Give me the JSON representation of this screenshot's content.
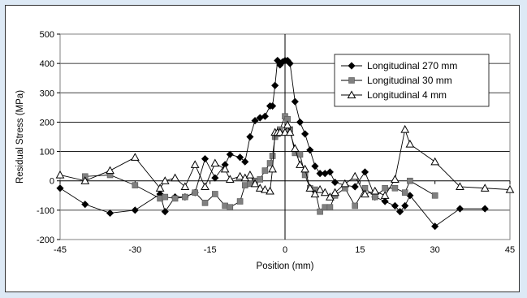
{
  "chart_data": {
    "type": "line",
    "xlabel": "Position (mm)",
    "ylabel": "Residual Stress (MPa)",
    "xlim": [
      -45,
      45
    ],
    "ylim": [
      -200,
      500
    ],
    "xticks": [
      -45,
      -30,
      -15,
      0,
      15,
      30,
      45
    ],
    "yticks": [
      -200,
      -100,
      0,
      100,
      200,
      300,
      400,
      500
    ],
    "grid": "horizontal",
    "legend_position": "top-right",
    "series": [
      {
        "name": "Longitudinal 270 mm",
        "marker": "diamond",
        "color": "#000000",
        "x": [
          -45,
          -40,
          -35,
          -30,
          -25,
          -24,
          -22,
          -20,
          -18,
          -16,
          -14,
          -12,
          -11,
          -9,
          -8,
          -7,
          -6,
          -5,
          -4,
          -3,
          -2.5,
          -2,
          -1.5,
          -1,
          -0.5,
          0,
          0.5,
          1,
          2,
          3,
          4,
          5,
          6,
          7,
          8,
          9,
          10,
          12,
          14,
          16,
          18,
          20,
          22,
          23,
          24,
          25,
          30,
          35,
          40
        ],
        "y": [
          -25,
          -80,
          -110,
          -100,
          -45,
          -105,
          -55,
          -55,
          -40,
          75,
          10,
          55,
          90,
          80,
          65,
          150,
          205,
          215,
          220,
          255,
          255,
          325,
          410,
          395,
          405,
          410,
          410,
          400,
          270,
          200,
          160,
          105,
          50,
          25,
          25,
          30,
          -5,
          -15,
          -20,
          30,
          -55,
          -70,
          -85,
          -105,
          -85,
          -50,
          -155,
          -95,
          -95
        ]
      },
      {
        "name": "Longitudinal 30 mm",
        "marker": "square",
        "color": "#808080",
        "x": [
          -40,
          -35,
          -30,
          -25,
          -24,
          -22,
          -20,
          -18,
          -16,
          -14,
          -12,
          -11,
          -9,
          -8,
          -7,
          -6,
          -5,
          -4,
          -3,
          -2.5,
          -2,
          -1.5,
          -1,
          0,
          0.5,
          1,
          2,
          3,
          4,
          5,
          6,
          7,
          8,
          9,
          10,
          12,
          14,
          16,
          18,
          20,
          22,
          24,
          25,
          30
        ],
        "y": [
          15,
          20,
          -15,
          -60,
          -55,
          -60,
          -55,
          -40,
          -75,
          -45,
          -85,
          -90,
          -70,
          -15,
          -10,
          0,
          5,
          35,
          60,
          85,
          150,
          160,
          175,
          220,
          210,
          175,
          95,
          90,
          20,
          -25,
          -30,
          -105,
          -90,
          -90,
          -50,
          -25,
          -85,
          -25,
          -55,
          -25,
          -25,
          -40,
          0,
          -50
        ]
      },
      {
        "name": "Longitudinal 4 mm",
        "marker": "triangle",
        "color": "#000000",
        "x": [
          -45,
          -40,
          -35,
          -30,
          -25,
          -24,
          -22,
          -20,
          -18,
          -16,
          -14,
          -12,
          -11,
          -9,
          -8,
          -7,
          -6,
          -5,
          -4,
          -3,
          -2.5,
          -2,
          -1.5,
          -1,
          0,
          0.5,
          1,
          2,
          3,
          4,
          5,
          6,
          7,
          8,
          9,
          10,
          12,
          14,
          16,
          18,
          20,
          22,
          24,
          25,
          30,
          35,
          40,
          45
        ],
        "y": [
          20,
          0,
          35,
          80,
          -25,
          0,
          10,
          -20,
          55,
          -20,
          60,
          40,
          5,
          15,
          10,
          20,
          -10,
          -25,
          -30,
          -35,
          40,
          165,
          165,
          165,
          165,
          190,
          165,
          110,
          55,
          40,
          -25,
          -45,
          -30,
          -40,
          -55,
          -40,
          -10,
          15,
          -45,
          -35,
          -50,
          5,
          175,
          125,
          65,
          -20,
          -25,
          -30
        ]
      }
    ]
  }
}
